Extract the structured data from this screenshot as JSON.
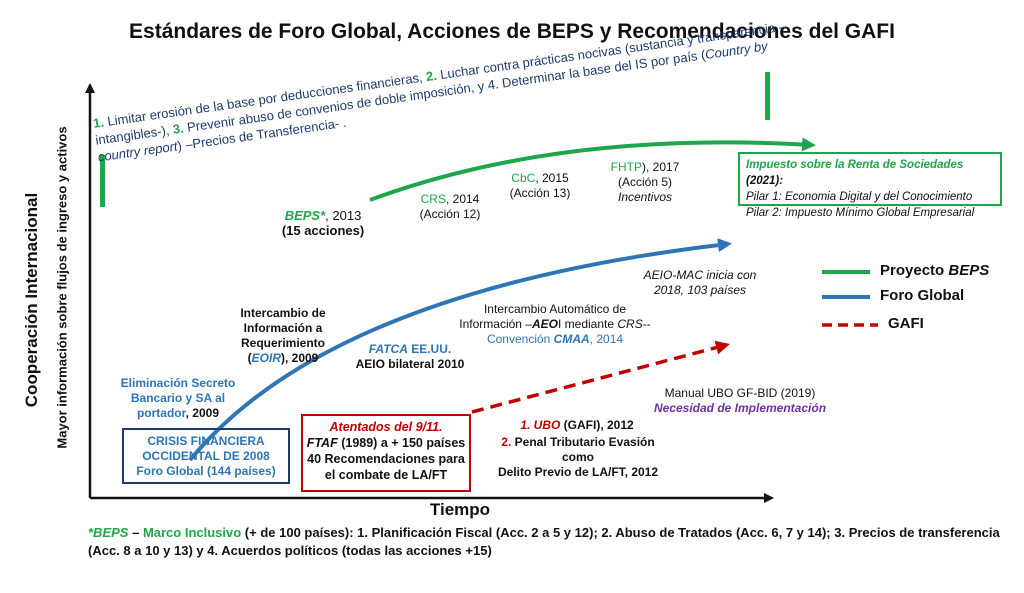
{
  "title": "Estándares de Foro Global, Acciones de BEPS y Recomendaciones del GAFI",
  "y_axis_label": "Cooperación Internacional",
  "y_axis_sublabel": "Mayor información sobre flujos de ingreso y activos",
  "x_axis_label": "Tiempo",
  "beps_goals": {
    "n1": "1.",
    "t1": " Limitar erosión de la base por deducciones financieras, ",
    "n2": "2.",
    "t2": " Luchar contra prácticas  nocivas (sustancia y transparencia –intangibles-), ",
    "n3": "3.",
    "t3": " Prevenir abuso de convenios de doble imposición, y 4. Determinar la base del IS por país (",
    "t3i": "Country by country report",
    "t4": ") –Precios de Transferencia- ."
  },
  "beps_events": {
    "beps_name": "BEPS*",
    "beps_year": ", 2013",
    "beps_actions": "(15 acciones)",
    "crs_name": "CRS",
    "crs_year": ", 2014",
    "crs_action": "(Acción 12)",
    "cbc_name": "CbC",
    "cbc_year": ", 2015",
    "cbc_action": "(Acción 13)",
    "fhtp_name": "FHTP",
    "fhtp_year": "),  2017",
    "fhtp_action": "(Acción 5)",
    "fhtp_note": "Incentivos"
  },
  "pillars_box": {
    "heading": "Impuesto sobre la Renta de Sociedades",
    "heading_year": " (2021):",
    "pillar1": "Pilar 1: Economia  Digital y del Conocimiento",
    "pillar2": "Pilar 2: Impuesto Mínimo Global Empresarial"
  },
  "global_forum_events": {
    "elim_line1": "Eliminación Secreto",
    "elim_line2": "Bancario y SA al",
    "elim_line3": "portador",
    "elim_year": ", 2009",
    "eoir_line1": "Intercambio de",
    "eoir_line2": "Información a",
    "eoir_line3": "Requerimiento",
    "eoir_open": "(",
    "eoir_name": "EOIR",
    "eoir_year": "), 2009",
    "fatca_name": "FATCA",
    "fatca_country": " EE.UU.",
    "fatca_line2": "AEIO bilateral 2010",
    "aeoi_line1": "Intercambio Automático de",
    "aeoi_line2a": "Información –",
    "aeoi_name": "AEO",
    "aeoi_line2b": "I mediante ",
    "aeoi_crs": "CRS",
    "aeoi_line2c": "--",
    "aeoi_conv": "Convención ",
    "aeoi_cmaa": "CMAA",
    "aeoi_year": ", 2014",
    "mac_line1": "AEIO-MAC inicia con",
    "mac_line2": "2018, 103 países"
  },
  "crisis_box": {
    "line1": "CRISIS FINANCIERA",
    "line2": "OCCIDENTAL DE 2008",
    "line3": "Foro Global (144 países)"
  },
  "gafi_box": {
    "line1": "Atentados del 9/11.",
    "line2a": "FTAF",
    "line2b": " (1989) a + 150 países",
    "line3": "40 Recomendaciones para",
    "line4": "el combate de LA/FT"
  },
  "gafi_events": {
    "ubo_num": "1. UBO",
    "ubo_rest": " (GAFI), 2012",
    "penal_num": "2.",
    "penal_line1": " Penal Tributario Evasión como",
    "penal_line2": "Delito Previo de LA/FT, 2012",
    "manual": "Manual UBO GF-BID  (2019)",
    "necesidad": "Necesidad de Implementación"
  },
  "legend": {
    "beps_a": "Proyecto ",
    "beps_b": "BEPS",
    "global_forum": "Foro Global",
    "gafi": "GAFI"
  },
  "footnote": {
    "star_beps": "*BEPS",
    "dash": " – ",
    "inclusive": "Marco Inclusivo",
    "rest1": " (+ de 100 países): 1. Planificación Fiscal (Acc. 2 a 5 y 12);  2. Abuso de Tratados (Acc. 6, 7 y 14); 3. Precios de transferencia",
    "rest2": "(Acc. 8 a 10 y 13) y 4. Acuerdos políticos (todas las acciones +15)"
  },
  "colors": {
    "beps_green": "#1fa64a",
    "global_forum_blue": "#2e75b6",
    "gafi_red": "#c00000",
    "navy": "#1f3a70",
    "purple": "#7030a0"
  }
}
